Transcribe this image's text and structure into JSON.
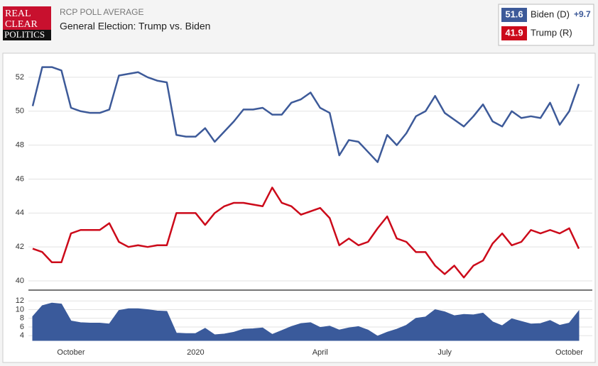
{
  "logo": [
    "REAL",
    "CLEAR",
    "POLITICS"
  ],
  "chart_data": [
    {
      "type": "line",
      "subtitle": "RCP POLL AVERAGE",
      "title": "General Election: Trump vs. Biden",
      "categories": [
        null,
        null,
        null,
        null,
        "October",
        null,
        null,
        null,
        null,
        null,
        null,
        null,
        null,
        null,
        null,
        null,
        null,
        "2020",
        null,
        null,
        null,
        null,
        null,
        null,
        null,
        null,
        null,
        null,
        null,
        null,
        "April",
        null,
        null,
        null,
        null,
        null,
        null,
        null,
        null,
        null,
        null,
        null,
        null,
        "July",
        null,
        null,
        null,
        null,
        null,
        null,
        null,
        null,
        null,
        null,
        null,
        null,
        "October",
        null
      ],
      "series": [
        {
          "name": "Biden (D)",
          "color": "#3d5a99",
          "values": [
            50.3,
            52.6,
            52.6,
            52.4,
            50.2,
            50.0,
            49.9,
            49.9,
            50.1,
            52.1,
            52.2,
            52.3,
            52.0,
            51.8,
            51.7,
            48.6,
            48.5,
            48.5,
            49.0,
            48.2,
            48.8,
            49.4,
            50.1,
            50.1,
            50.2,
            49.8,
            49.8,
            50.5,
            50.7,
            51.1,
            50.2,
            49.9,
            47.4,
            48.3,
            48.2,
            47.6,
            47.0,
            48.6,
            48.0,
            48.7,
            49.7,
            50.0,
            50.9,
            49.9,
            49.5,
            49.1,
            49.7,
            50.4,
            49.4,
            49.1,
            50.0,
            49.6,
            49.7,
            49.6,
            50.5,
            49.2,
            50.0,
            51.6
          ]
        },
        {
          "name": "Trump (R)",
          "color": "#cc0a1a",
          "values": [
            41.9,
            41.7,
            41.1,
            41.1,
            42.8,
            43.0,
            43.0,
            43.0,
            43.4,
            42.3,
            42.0,
            42.1,
            42.0,
            42.1,
            42.1,
            44.0,
            44.0,
            44.0,
            43.3,
            44.0,
            44.4,
            44.6,
            44.6,
            44.5,
            44.4,
            45.5,
            44.6,
            44.4,
            43.9,
            44.1,
            44.3,
            43.7,
            42.1,
            42.5,
            42.1,
            42.3,
            43.1,
            43.8,
            42.5,
            42.3,
            41.7,
            41.7,
            40.9,
            40.4,
            40.9,
            40.2,
            40.9,
            41.2,
            42.2,
            42.8,
            42.1,
            42.3,
            43.0,
            42.8,
            43.0,
            42.8,
            43.1,
            41.9
          ]
        }
      ],
      "legend_lead": {
        "value": 9.7,
        "label": "+9.7"
      },
      "ylim": [
        39.5,
        53
      ],
      "yticks": [
        40,
        42,
        44,
        46,
        48,
        50,
        52
      ],
      "grid": true
    },
    {
      "type": "area",
      "series": [
        {
          "color": "#3a5a9b",
          "values": [
            8.4,
            10.9,
            11.5,
            11.3,
            7.4,
            7.0,
            6.9,
            6.9,
            6.7,
            9.8,
            10.2,
            10.2,
            10.0,
            9.7,
            9.6,
            4.6,
            4.5,
            4.5,
            5.7,
            4.2,
            4.4,
            4.8,
            5.5,
            5.6,
            5.8,
            4.3,
            5.2,
            6.1,
            6.8,
            7.0,
            5.9,
            6.2,
            5.3,
            5.8,
            6.1,
            5.3,
            3.9,
            4.8,
            5.5,
            6.4,
            8.0,
            8.3,
            10.0,
            9.5,
            8.6,
            8.9,
            8.8,
            9.2,
            7.2,
            6.3,
            7.9,
            7.3,
            6.7,
            6.8,
            7.5,
            6.4,
            6.9,
            9.7
          ]
        }
      ],
      "ylim": [
        2.9,
        14
      ],
      "yticks": [
        4,
        6,
        8,
        10,
        12
      ],
      "grid": true
    }
  ]
}
